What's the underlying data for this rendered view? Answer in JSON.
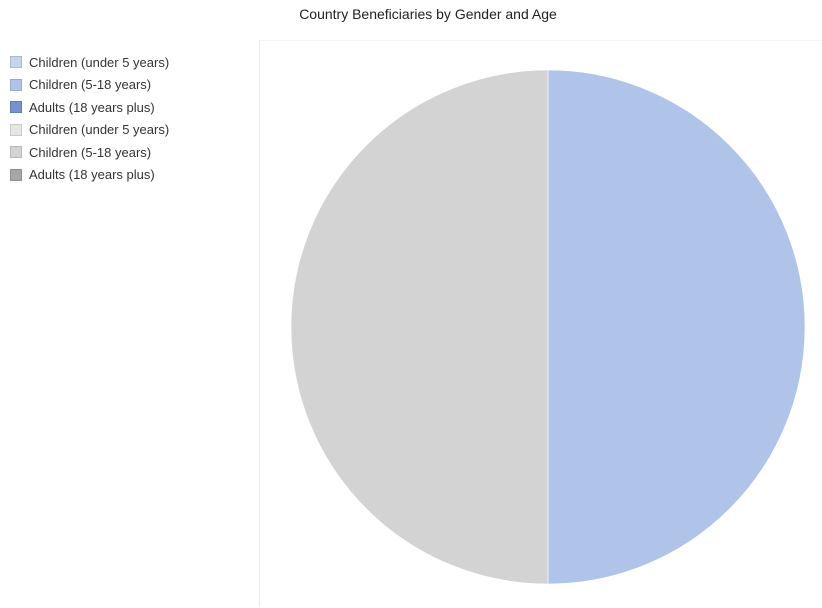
{
  "chart_data": {
    "type": "pie",
    "title": "Country Beneficiaries by Gender and Age",
    "legend_position": "left",
    "slices": [
      {
        "label": "Children (under 5 years)",
        "value": 0,
        "color": "#c6d4ee"
      },
      {
        "label": "Children (5-18 years)",
        "value": 50,
        "color": "#b0c3e8"
      },
      {
        "label": "Adults (18 years plus)",
        "value": 0,
        "color": "#7394cf"
      },
      {
        "label": "Children (under 5 years)",
        "value": 0,
        "color": "#e6e6e6"
      },
      {
        "label": "Children (5-18 years)",
        "value": 50,
        "color": "#d3d3d3"
      },
      {
        "label": "Adults (18 years plus)",
        "value": 0,
        "color": "#a6a6a6"
      }
    ]
  }
}
